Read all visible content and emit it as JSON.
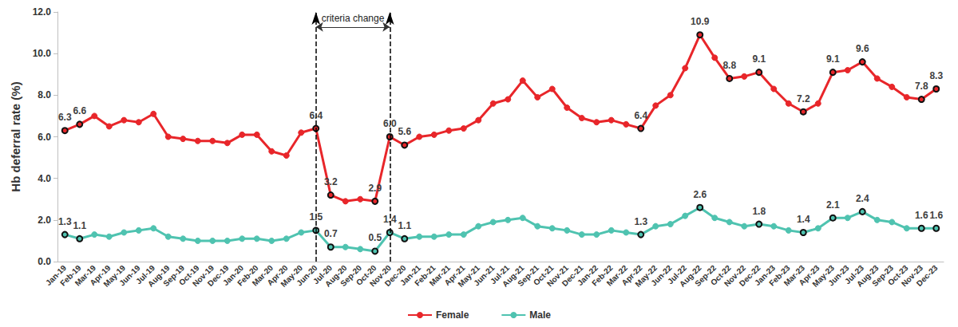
{
  "chart_data": {
    "type": "line",
    "y_label": "Hb deferral rate (%)",
    "categories": [
      "Jan-19",
      "Feb-19",
      "Mar-19",
      "Apr-19",
      "May-19",
      "Jun-19",
      "Jul-19",
      "Aug-19",
      "Sep-19",
      "Oct-19",
      "Nov-19",
      "Dec-19",
      "Jan-20",
      "Feb-20",
      "Mar-20",
      "Apr-20",
      "May-20",
      "Jun-20",
      "Jul-20",
      "Aug-20",
      "Sep-20",
      "Oct-20",
      "Nov-20",
      "Dec-20",
      "Jan-21",
      "Feb-21",
      "Mar-21",
      "Apr-21",
      "May-21",
      "Jun-21",
      "Jul-21",
      "Aug-21",
      "Sep-21",
      "Oct-21",
      "Nov-21",
      "Dec-21",
      "Jan-22",
      "Feb-22",
      "Mar-22",
      "Apr-22",
      "May-22",
      "Jun-22",
      "Jul-22",
      "Aug-22",
      "Sep-22",
      "Oct-22",
      "Nov-22",
      "Dec-22",
      "Jan-23",
      "Feb-23",
      "Mar-23",
      "Apr-23",
      "May-23",
      "Jun-23",
      "Jul-23",
      "Aug-23",
      "Sep-23",
      "Oct-23",
      "Nov-23",
      "Dec-23"
    ],
    "series": [
      {
        "name": "Female",
        "color": "#e8262a",
        "marker": "circle",
        "values": [
          6.3,
          6.6,
          7.0,
          6.5,
          6.8,
          6.7,
          7.1,
          6.0,
          5.9,
          5.8,
          5.8,
          5.7,
          6.1,
          6.1,
          5.3,
          5.1,
          6.2,
          6.4,
          3.2,
          2.9,
          3.0,
          2.9,
          6.0,
          5.6,
          6.0,
          6.1,
          6.3,
          6.4,
          6.8,
          7.6,
          7.8,
          8.7,
          7.9,
          8.3,
          7.4,
          6.9,
          6.7,
          6.8,
          6.6,
          6.4,
          7.5,
          8.0,
          9.3,
          10.9,
          9.8,
          8.8,
          8.9,
          9.1,
          8.3,
          7.6,
          7.2,
          7.6,
          9.1,
          9.2,
          9.6,
          8.8,
          8.4,
          7.9,
          7.8,
          8.3
        ],
        "value_labels": [
          "6.3",
          "6.6",
          null,
          null,
          null,
          null,
          null,
          null,
          null,
          null,
          null,
          null,
          null,
          null,
          null,
          null,
          null,
          "6.4",
          "3.2",
          null,
          null,
          "2.9",
          "6.0",
          "5.6",
          null,
          null,
          null,
          null,
          null,
          null,
          null,
          null,
          null,
          null,
          null,
          null,
          null,
          null,
          null,
          "6.4",
          null,
          null,
          null,
          "10.9",
          null,
          "8.8",
          null,
          "9.1",
          null,
          null,
          "7.2",
          null,
          "9.1",
          null,
          "9.6",
          null,
          null,
          null,
          "7.8",
          "8.3"
        ]
      },
      {
        "name": "Male",
        "color": "#4fc3b0",
        "marker": "circle",
        "values": [
          1.3,
          1.1,
          1.3,
          1.2,
          1.4,
          1.5,
          1.6,
          1.2,
          1.1,
          1.0,
          1.0,
          1.0,
          1.1,
          1.1,
          1.0,
          1.1,
          1.4,
          1.5,
          0.7,
          0.7,
          0.6,
          0.5,
          1.4,
          1.1,
          1.2,
          1.2,
          1.3,
          1.3,
          1.7,
          1.9,
          2.0,
          2.1,
          1.7,
          1.6,
          1.5,
          1.3,
          1.3,
          1.5,
          1.4,
          1.3,
          1.7,
          1.8,
          2.2,
          2.6,
          2.1,
          1.9,
          1.7,
          1.8,
          1.7,
          1.5,
          1.4,
          1.6,
          2.1,
          2.1,
          2.4,
          2.0,
          1.9,
          1.6,
          1.6,
          1.6
        ],
        "value_labels": [
          "1.3",
          "1.1",
          null,
          null,
          null,
          null,
          null,
          null,
          null,
          null,
          null,
          null,
          null,
          null,
          null,
          null,
          null,
          "1.5",
          "0.7",
          null,
          null,
          "0.5",
          "1.4",
          "1.1",
          null,
          null,
          null,
          null,
          null,
          null,
          null,
          null,
          null,
          null,
          null,
          null,
          null,
          null,
          null,
          "1.3",
          null,
          null,
          null,
          "2.6",
          null,
          null,
          null,
          "1.8",
          null,
          null,
          "1.4",
          null,
          "2.1",
          null,
          "2.4",
          null,
          null,
          null,
          "1.6",
          "1.6"
        ]
      }
    ],
    "ylim": [
      0,
      12
    ],
    "yticks": [
      {
        "value": 0,
        "label": "0.0"
      },
      {
        "value": 2,
        "label": "2.0"
      },
      {
        "value": 4,
        "label": "4.0"
      },
      {
        "value": 6,
        "label": "6.0"
      },
      {
        "value": 8,
        "label": "8.0"
      },
      {
        "value": 10,
        "label": "10.0"
      },
      {
        "value": 12,
        "label": "12.0"
      }
    ],
    "annotation": {
      "text": "criteria change",
      "from": "Jun-20",
      "to": "Nov-20"
    },
    "grid": false,
    "legend": "bottom",
    "data_labels": true
  }
}
